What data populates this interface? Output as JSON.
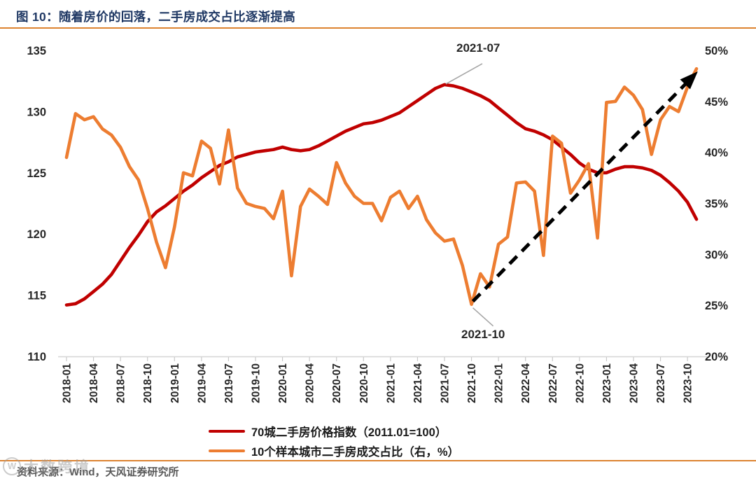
{
  "header": {
    "title": "图 10：随着房价的回落，二手房成交占比逐渐提高"
  },
  "footer": {
    "source": "资料来源：Wind，天风证券研究所",
    "watermark": "大数跨境",
    "watermark_logo": "W"
  },
  "legend": [
    {
      "label": "70城二手房价格指数（2011.01=100）",
      "color": "#c00000"
    },
    {
      "label": "10个样本城市二手房成交占比（右，%）",
      "color": "#ed7d31"
    }
  ],
  "chart_data": {
    "type": "line",
    "title": "图 10：随着房价的回落，二手房成交占比逐渐提高",
    "x": [
      "2018-01",
      "2018-02",
      "2018-03",
      "2018-04",
      "2018-05",
      "2018-06",
      "2018-07",
      "2018-08",
      "2018-09",
      "2018-10",
      "2018-11",
      "2018-12",
      "2019-01",
      "2019-02",
      "2019-03",
      "2019-04",
      "2019-05",
      "2019-06",
      "2019-07",
      "2019-08",
      "2019-09",
      "2019-10",
      "2019-11",
      "2019-12",
      "2020-01",
      "2020-02",
      "2020-03",
      "2020-04",
      "2020-05",
      "2020-06",
      "2020-07",
      "2020-08",
      "2020-09",
      "2020-10",
      "2020-11",
      "2020-12",
      "2021-01",
      "2021-02",
      "2021-03",
      "2021-04",
      "2021-05",
      "2021-06",
      "2021-07",
      "2021-08",
      "2021-09",
      "2021-10",
      "2021-11",
      "2021-12",
      "2022-01",
      "2022-02",
      "2022-03",
      "2022-04",
      "2022-05",
      "2022-06",
      "2022-07",
      "2022-08",
      "2022-09",
      "2022-10",
      "2022-11",
      "2022-12",
      "2023-01",
      "2023-02",
      "2023-03",
      "2023-04",
      "2023-05",
      "2023-06",
      "2023-07",
      "2023-08",
      "2023-09",
      "2023-10",
      "2023-11"
    ],
    "x_tick_labels": [
      "2018-01",
      "2018-04",
      "2018-07",
      "2018-10",
      "2019-01",
      "2019-04",
      "2019-07",
      "2019-10",
      "2020-01",
      "2020-04",
      "2020-07",
      "2020-10",
      "2021-01",
      "2021-04",
      "2021-07",
      "2021-10",
      "2022-01",
      "2022-04",
      "2022-07",
      "2022-10",
      "2023-01",
      "2023-04",
      "2023-07",
      "2023-10"
    ],
    "series": [
      {
        "name": "70城二手房价格指数（2011.01=100）",
        "axis": "left",
        "color": "#c00000",
        "values": [
          114.2,
          114.3,
          114.7,
          115.3,
          115.9,
          116.7,
          117.8,
          118.9,
          119.9,
          121.0,
          121.8,
          122.3,
          122.9,
          123.5,
          124.0,
          124.6,
          125.1,
          125.6,
          125.9,
          126.3,
          126.5,
          126.7,
          126.8,
          126.9,
          127.1,
          126.9,
          126.8,
          126.9,
          127.2,
          127.6,
          128.0,
          128.4,
          128.7,
          129.0,
          129.1,
          129.3,
          129.6,
          129.9,
          130.4,
          130.9,
          131.4,
          131.9,
          132.2,
          132.1,
          131.9,
          131.6,
          131.3,
          130.9,
          130.3,
          129.7,
          129.1,
          128.6,
          128.4,
          128.1,
          127.7,
          127.1,
          126.5,
          125.8,
          125.3,
          125.0,
          125.0,
          125.3,
          125.5,
          125.5,
          125.4,
          125.2,
          124.8,
          124.2,
          123.5,
          122.6,
          121.2
        ]
      },
      {
        "name": "10个样本城市二手房成交占比（右，%）",
        "axis": "right",
        "color": "#ed7d31",
        "values": [
          39.5,
          43.8,
          43.2,
          43.5,
          42.3,
          41.7,
          40.5,
          38.6,
          37.3,
          34.5,
          31.2,
          28.7,
          32.7,
          38.0,
          37.7,
          41.1,
          40.4,
          36.9,
          42.2,
          36.5,
          35.0,
          34.7,
          34.5,
          33.5,
          36.2,
          27.9,
          34.7,
          36.4,
          35.7,
          34.9,
          39.0,
          37.0,
          35.7,
          35.0,
          35.0,
          33.3,
          35.6,
          36.2,
          34.5,
          35.7,
          33.4,
          32.1,
          31.3,
          31.5,
          28.9,
          25.1,
          28.1,
          26.8,
          31.0,
          31.7,
          37.0,
          37.1,
          36.2,
          29.9,
          41.6,
          40.9,
          36.0,
          37.3,
          38.9,
          31.6,
          44.9,
          45.0,
          46.4,
          45.6,
          44.2,
          39.8,
          43.2,
          44.5,
          44.0,
          46.4,
          48.2
        ]
      }
    ],
    "left_axis": {
      "min": 110,
      "max": 135,
      "ticks": [
        135,
        130,
        125,
        120,
        115,
        110
      ]
    },
    "right_axis": {
      "min": 20,
      "max": 50,
      "ticks": [
        50,
        45,
        40,
        35,
        30,
        25,
        20
      ],
      "suffix": "%"
    },
    "grid": false,
    "legend_position": "bottom",
    "annotations": [
      {
        "label": "2021-07",
        "series": 0,
        "month_index": 42,
        "placement": "above-peak"
      },
      {
        "label": "2021-10",
        "series": 1,
        "month_index": 45,
        "placement": "below-trough"
      }
    ],
    "trend_arrow": {
      "style": "dashed",
      "color": "#000000",
      "axis": "right",
      "from_month_index": 45,
      "from_value": 25.4,
      "to_month_index": 70,
      "to_value": 47.6
    }
  }
}
